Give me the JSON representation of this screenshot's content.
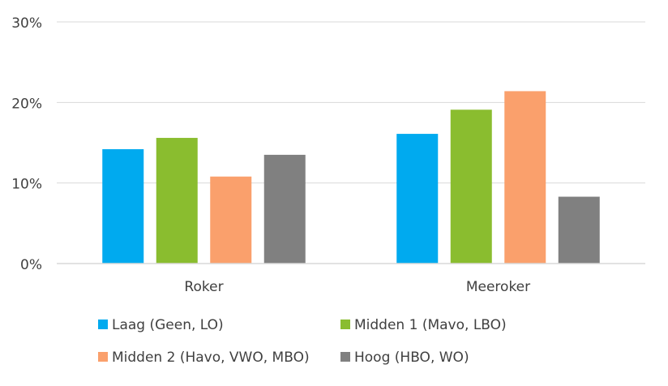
{
  "chart_data": {
    "type": "bar",
    "title": "",
    "xlabel": "",
    "ylabel": "",
    "categories": [
      "Roker",
      "Meeroker"
    ],
    "ylim": [
      0,
      30
    ],
    "yticks": [
      0,
      10,
      20,
      30
    ],
    "ytick_labels": [
      "0%",
      "10%",
      "20%",
      "30%"
    ],
    "grid": true,
    "legend_position": "bottom",
    "series": [
      {
        "name": "Laag (Geen, LO)",
        "color": "#00AAEF",
        "values": [
          14.2,
          16.1
        ]
      },
      {
        "name": "Midden 1 (Mavo, LBO)",
        "color": "#8ABD2F",
        "values": [
          15.6,
          19.1
        ]
      },
      {
        "name": "Midden 2 (Havo, VWO, MBO)",
        "color": "#FAA06C",
        "values": [
          10.8,
          21.4
        ]
      },
      {
        "name": "Hoog (HBO, WO)",
        "color": "#808080",
        "values": [
          13.5,
          8.3
        ]
      }
    ]
  }
}
